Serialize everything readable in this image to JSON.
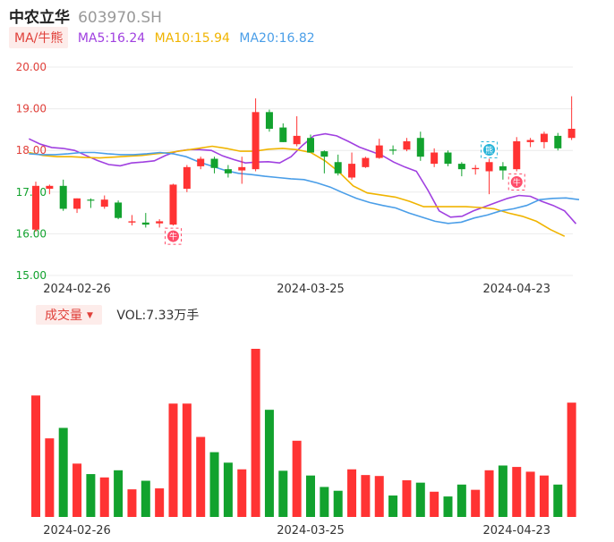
{
  "header": {
    "name": "中农立华",
    "code": "603970.SH"
  },
  "ma_bar": {
    "button_label": "MA/牛熊",
    "ma5": {
      "label": "MA5:16.24",
      "color": "#a040e0"
    },
    "ma10": {
      "label": "MA10:15.94",
      "color": "#f0b400"
    },
    "ma20": {
      "label": "MA20:16.82",
      "color": "#4a9ee8"
    }
  },
  "volume_bar": {
    "button_label": "成交量",
    "vol_label": "VOL:7.33万手"
  },
  "colors": {
    "up": "#ff3333",
    "down": "#12a22e",
    "ma5": "#a040e0",
    "ma10": "#f0b400",
    "ma20": "#4a9ee8",
    "badge_bull": "#ff4d6a",
    "badge_bear": "#25b3d8"
  },
  "badges": [
    {
      "index": 10,
      "kind": "bull",
      "text": "牛"
    },
    {
      "index": 33,
      "kind": "bear",
      "text": "熊"
    },
    {
      "index": 35,
      "kind": "bull",
      "text": "牛"
    }
  ],
  "chart_data": [
    {
      "type": "candlestick",
      "ylim": [
        15,
        20
      ],
      "yticks": [
        "20.00",
        "19.00",
        "18.00",
        "17.00",
        "16.00",
        "15.00"
      ],
      "x_tick_labels": [
        {
          "index": 3,
          "label": "2024-02-26"
        },
        {
          "index": 20,
          "label": "2024-03-25"
        },
        {
          "index": 35,
          "label": "2024-04-23"
        }
      ],
      "candles": [
        {
          "o": 16.1,
          "h": 17.25,
          "l": 16.05,
          "c": 17.15
        },
        {
          "o": 17.08,
          "h": 17.18,
          "l": 16.95,
          "c": 17.15
        },
        {
          "o": 17.15,
          "h": 17.3,
          "l": 16.55,
          "c": 16.6
        },
        {
          "o": 16.6,
          "h": 16.85,
          "l": 16.5,
          "c": 16.85
        },
        {
          "o": 16.82,
          "h": 16.85,
          "l": 16.62,
          "c": 16.8
        },
        {
          "o": 16.65,
          "h": 16.92,
          "l": 16.6,
          "c": 16.82
        },
        {
          "o": 16.75,
          "h": 16.8,
          "l": 16.35,
          "c": 16.38
        },
        {
          "o": 16.27,
          "h": 16.45,
          "l": 16.2,
          "c": 16.3
        },
        {
          "o": 16.27,
          "h": 16.5,
          "l": 16.15,
          "c": 16.22
        },
        {
          "o": 16.25,
          "h": 16.35,
          "l": 16.15,
          "c": 16.3
        },
        {
          "o": 16.22,
          "h": 17.2,
          "l": 16.2,
          "c": 17.18
        },
        {
          "o": 17.08,
          "h": 17.65,
          "l": 17.0,
          "c": 17.6
        },
        {
          "o": 17.62,
          "h": 17.85,
          "l": 17.55,
          "c": 17.8
        },
        {
          "o": 17.8,
          "h": 17.85,
          "l": 17.45,
          "c": 17.58
        },
        {
          "o": 17.55,
          "h": 17.65,
          "l": 17.35,
          "c": 17.45
        },
        {
          "o": 17.52,
          "h": 17.85,
          "l": 17.2,
          "c": 17.6
        },
        {
          "o": 17.55,
          "h": 19.25,
          "l": 17.5,
          "c": 18.92
        },
        {
          "o": 18.92,
          "h": 18.98,
          "l": 18.45,
          "c": 18.52
        },
        {
          "o": 18.55,
          "h": 18.65,
          "l": 18.2,
          "c": 18.2
        },
        {
          "o": 18.15,
          "h": 18.82,
          "l": 18.1,
          "c": 18.35
        },
        {
          "o": 18.3,
          "h": 18.38,
          "l": 17.95,
          "c": 17.95
        },
        {
          "o": 17.98,
          "h": 18.0,
          "l": 17.45,
          "c": 17.85
        },
        {
          "o": 17.72,
          "h": 17.9,
          "l": 17.4,
          "c": 17.45
        },
        {
          "o": 17.35,
          "h": 17.95,
          "l": 17.3,
          "c": 17.68
        },
        {
          "o": 17.6,
          "h": 17.85,
          "l": 17.58,
          "c": 17.82
        },
        {
          "o": 17.82,
          "h": 18.28,
          "l": 17.8,
          "c": 18.12
        },
        {
          "o": 18.02,
          "h": 18.12,
          "l": 17.9,
          "c": 18.0
        },
        {
          "o": 18.02,
          "h": 18.3,
          "l": 17.98,
          "c": 18.22
        },
        {
          "o": 18.3,
          "h": 18.45,
          "l": 17.75,
          "c": 17.85
        },
        {
          "o": 17.68,
          "h": 18.05,
          "l": 17.6,
          "c": 17.95
        },
        {
          "o": 17.95,
          "h": 18.0,
          "l": 17.62,
          "c": 17.68
        },
        {
          "o": 17.68,
          "h": 17.72,
          "l": 17.38,
          "c": 17.55
        },
        {
          "o": 17.55,
          "h": 17.65,
          "l": 17.42,
          "c": 17.58
        },
        {
          "o": 17.5,
          "h": 17.8,
          "l": 16.95,
          "c": 17.72
        },
        {
          "o": 17.62,
          "h": 17.72,
          "l": 17.3,
          "c": 17.52
        },
        {
          "o": 17.55,
          "h": 18.32,
          "l": 17.5,
          "c": 18.22
        },
        {
          "o": 18.2,
          "h": 18.3,
          "l": 18.08,
          "c": 18.25
        },
        {
          "o": 18.2,
          "h": 18.45,
          "l": 18.05,
          "c": 18.4
        },
        {
          "o": 18.35,
          "h": 18.42,
          "l": 18.0,
          "c": 18.05
        },
        {
          "o": 18.3,
          "h": 19.3,
          "l": 18.25,
          "c": 18.52
        }
      ],
      "ma_series": [
        {
          "key": "ma5",
          "values": [
            18.28,
            18.15,
            18.07,
            18.05,
            18.0,
            17.88,
            17.76,
            17.66,
            17.63,
            17.7,
            17.72,
            17.75,
            17.88,
            17.98,
            18.02,
            18.02,
            18.0,
            17.87,
            17.78,
            17.7,
            17.72,
            17.73,
            17.7,
            17.85,
            18.12,
            18.35,
            18.4,
            18.35,
            18.22,
            18.08,
            17.98,
            17.88,
            17.72,
            17.6,
            17.5,
            17.05,
            16.55,
            16.4,
            16.42,
            16.55,
            16.65,
            16.75,
            16.85,
            16.92,
            16.9,
            16.78,
            16.68,
            16.55,
            16.24
          ],
          "x_start": -0.5,
          "x_step": 0.8295
        },
        {
          "key": "ma10",
          "values": [
            17.95,
            17.88,
            17.85,
            17.85,
            17.83,
            17.82,
            17.84,
            17.86,
            17.88,
            17.92,
            17.95,
            18.0,
            18.05,
            18.1,
            18.05,
            17.98,
            17.98,
            18.03,
            18.05,
            18.02,
            17.95,
            17.75,
            17.48,
            17.15,
            16.98,
            16.93,
            16.88,
            16.78,
            16.65,
            16.65,
            16.65,
            16.65,
            16.63,
            16.6,
            16.5,
            16.42,
            16.3,
            16.1,
            15.94
          ],
          "x_start": -0.5,
          "x_step": 1.026
        },
        {
          "key": "ma20",
          "values": [
            17.92,
            17.9,
            17.9,
            17.92,
            17.95,
            17.95,
            17.92,
            17.9,
            17.9,
            17.92,
            17.95,
            17.92,
            17.85,
            17.72,
            17.62,
            17.52,
            17.45,
            17.42,
            17.38,
            17.35,
            17.32,
            17.3,
            17.22,
            17.12,
            16.98,
            16.85,
            16.75,
            16.68,
            16.62,
            16.5,
            16.4,
            16.3,
            16.25,
            16.28,
            16.38,
            16.45,
            16.55,
            16.6,
            16.68,
            16.82,
            16.85,
            16.86,
            16.82
          ],
          "x_start": -0.5,
          "x_step": 0.9535
        }
      ]
    },
    {
      "type": "bar",
      "name_ref": "volume",
      "values": [
        2.55,
        1.65,
        1.87,
        1.12,
        0.9,
        0.83,
        0.98,
        0.58,
        0.76,
        0.6,
        2.38,
        2.38,
        1.68,
        1.36,
        1.14,
        1.0,
        3.53,
        2.25,
        0.97,
        1.6,
        0.87,
        0.63,
        0.55,
        1.0,
        0.88,
        0.86,
        0.45,
        0.77,
        0.72,
        0.53,
        0.43,
        0.68,
        0.57,
        0.98,
        1.08,
        1.05,
        0.95,
        0.87,
        0.68,
        2.4
      ],
      "x_tick_labels": [
        {
          "index": 3,
          "label": "2024-02-26"
        },
        {
          "index": 20,
          "label": "2024-03-25"
        },
        {
          "index": 35,
          "label": "2024-04-23"
        }
      ]
    }
  ]
}
